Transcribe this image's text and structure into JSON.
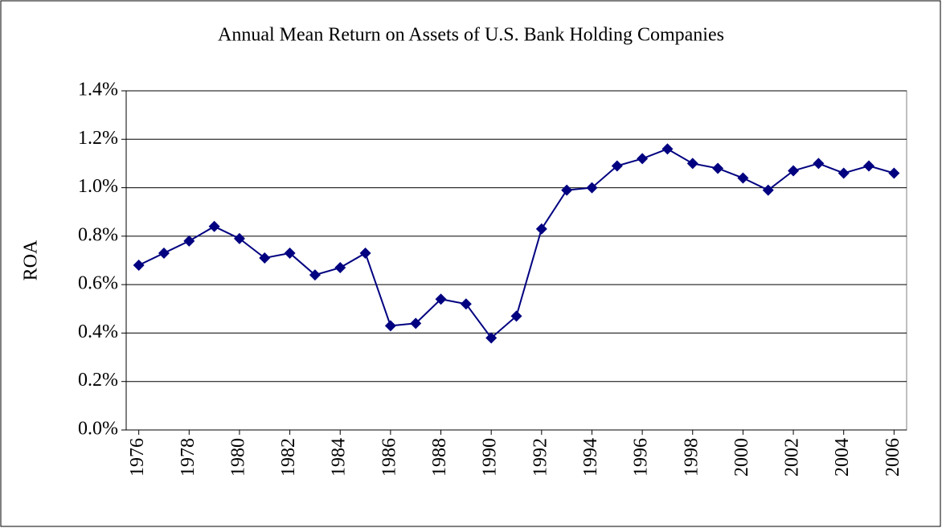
{
  "chart_data": {
    "type": "line",
    "title": "Annual Mean Return on Assets of U.S. Bank Holding Companies",
    "y_label": "ROA",
    "x": [
      1976,
      1977,
      1978,
      1979,
      1980,
      1981,
      1982,
      1983,
      1984,
      1985,
      1986,
      1987,
      1988,
      1989,
      1990,
      1991,
      1992,
      1993,
      1994,
      1995,
      1996,
      1997,
      1998,
      1999,
      2000,
      2001,
      2002,
      2003,
      2004,
      2005,
      2006
    ],
    "values": [
      0.68,
      0.73,
      0.78,
      0.84,
      0.79,
      0.71,
      0.73,
      0.64,
      0.67,
      0.73,
      0.43,
      0.44,
      0.54,
      0.52,
      0.38,
      0.47,
      0.83,
      0.99,
      1.0,
      1.09,
      1.12,
      1.16,
      1.1,
      1.08,
      1.04,
      0.99,
      1.07,
      1.1,
      1.06,
      1.09,
      1.06
    ],
    "color": "#000080",
    "xlim": [
      1975.5,
      2006.5
    ],
    "xticks": [
      1976,
      1978,
      1980,
      1982,
      1984,
      1986,
      1988,
      1990,
      1992,
      1994,
      1996,
      1998,
      2000,
      2002,
      2004,
      2006
    ],
    "ylim": [
      0,
      1.4
    ],
    "yticks": [
      {
        "value": 0,
        "label": "0.0%"
      },
      {
        "value": 0.2,
        "label": "0.2%"
      },
      {
        "value": 0.4,
        "label": "0.4%"
      },
      {
        "value": 0.6,
        "label": "0.6%"
      },
      {
        "value": 0.8,
        "label": "0.8%"
      },
      {
        "value": 1.0,
        "label": "1.0%"
      },
      {
        "value": 1.2,
        "label": "1.2%"
      },
      {
        "value": 1.4,
        "label": "1.4%"
      }
    ],
    "grid": true
  }
}
